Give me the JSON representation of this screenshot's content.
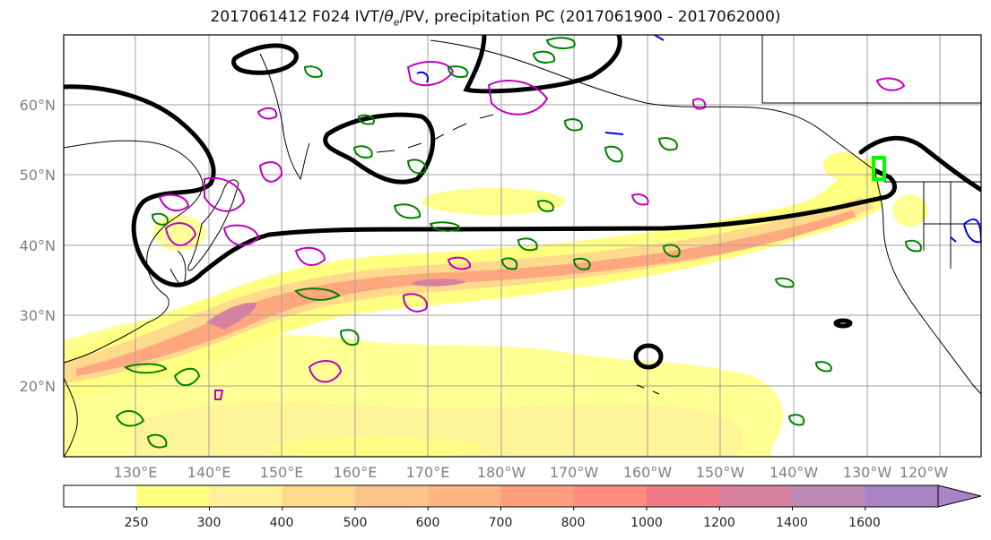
{
  "figure": {
    "title_prefix": "2017061412 F024 IVT/",
    "title_theta": "θ",
    "title_theta_sub": "e",
    "title_suffix": "/PV, precipitation PC (2017061900 - 2017062000)"
  },
  "map": {
    "lat_labels": [
      "60°N",
      "50°N",
      "40°N",
      "30°N",
      "20°N"
    ],
    "lon_labels": [
      "130°E",
      "140°E",
      "150°E",
      "160°E",
      "170°E",
      "180°W",
      "170°W",
      "160°W",
      "150°W",
      "140°W",
      "130°W",
      "120°W"
    ]
  },
  "colorbar": {
    "ticks": [
      "250",
      "300",
      "400",
      "500",
      "600",
      "700",
      "800",
      "1000",
      "1200",
      "1400",
      "1600"
    ],
    "colors": [
      "#ffffff",
      "#ffff80",
      "#fff099",
      "#ffd98c",
      "#ffc38c",
      "#ffb482",
      "#ff9e7c",
      "#ff8a80",
      "#f07a8a",
      "#d880a0",
      "#bc88b4",
      "#a884c4"
    ]
  },
  "legend_colors": {
    "ivt_fill_low": "#ffff80",
    "ivt_fill_high": "#a884c4",
    "theta_e_contour": "#000000",
    "pv_contour": "#c000c0",
    "precip_contour": "#008000",
    "blue_contour": "#0000ff",
    "lime_contour": "#00ff00"
  }
}
